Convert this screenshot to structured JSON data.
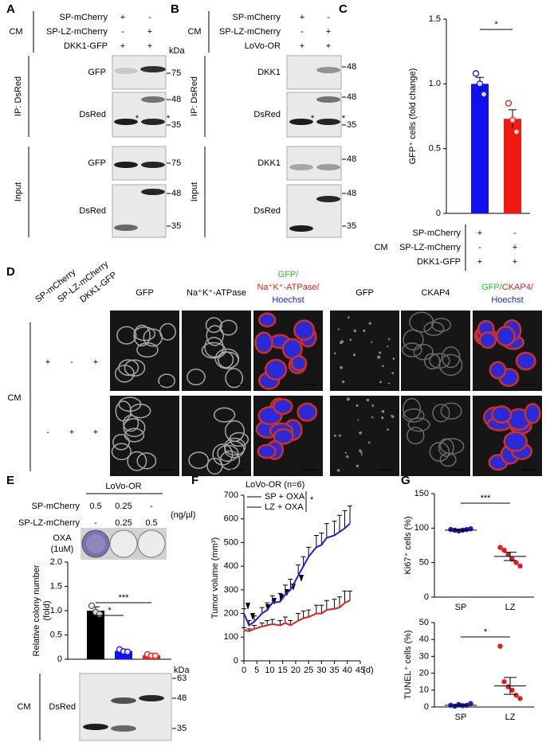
{
  "panels": {
    "A": {
      "label": "A",
      "conditions": {
        "group": "CM",
        "rows": [
          {
            "name": "SP-mCherry",
            "marks": [
              "+",
              "-"
            ]
          },
          {
            "name": "SP-LZ-mCherry",
            "marks": [
              "-",
              "+"
            ]
          },
          {
            "name": "DKK1-GFP",
            "marks": [
              "+",
              "+"
            ]
          }
        ]
      },
      "kda": "kDa",
      "sections": [
        {
          "label": "IP: DsRed",
          "blots": [
            {
              "name": "GFP",
              "markers": [
                75
              ]
            },
            {
              "name": "DsRed",
              "markers": [
                48,
                35
              ],
              "annotations": [
                "*",
                "*"
              ]
            }
          ]
        },
        {
          "label": "Input",
          "blots": [
            {
              "name": "GFP",
              "markers": [
                75
              ]
            },
            {
              "name": "DsRed",
              "markers": [
                48,
                35
              ]
            }
          ]
        }
      ]
    },
    "B": {
      "label": "B",
      "conditions": {
        "group": "CM",
        "rows": [
          {
            "name": "SP-mCherry",
            "marks": [
              "+",
              "-"
            ]
          },
          {
            "name": "SP-LZ-mCherry",
            "marks": [
              "-",
              "+"
            ]
          },
          {
            "name": "LoVo-OR",
            "marks": [
              "+",
              "+"
            ]
          }
        ]
      },
      "sections": [
        {
          "label": "IP: DsRed",
          "blots": [
            {
              "name": "DKK1",
              "markers": [
                48
              ]
            },
            {
              "name": "DsRed",
              "markers": [
                48,
                35
              ],
              "annotations": [
                "*",
                "*"
              ]
            }
          ]
        },
        {
          "label": "Input",
          "blots": [
            {
              "name": "DKK1",
              "markers": [
                48
              ]
            },
            {
              "name": "DsRed",
              "markers": [
                48,
                35
              ]
            }
          ]
        }
      ]
    },
    "C": {
      "label": "C",
      "conditions": {
        "group": "CM",
        "rows": [
          {
            "name": "SP-mCherry",
            "marks": [
              "+",
              "-"
            ]
          },
          {
            "name": "SP-LZ-mCherry",
            "marks": [
              "-",
              "+"
            ]
          },
          {
            "name": "DKK1-GFP",
            "marks": [
              "+",
              "+"
            ]
          }
        ]
      }
    },
    "D": {
      "label": "D",
      "group": "CM",
      "columns": [
        "SP-mCherry",
        "SP-LZ-mCherry",
        "DKK1-GFP"
      ],
      "rows": [
        [
          "+",
          "-",
          "+"
        ],
        [
          "-",
          "+",
          "+"
        ]
      ],
      "groups": [
        {
          "headers": [
            "GFP",
            "Na⁺K⁺-ATPase"
          ],
          "merge": [
            [
              {
                "text": "GFP/",
                "color": "#22c322"
              }
            ],
            [
              {
                "text": "Na⁺K⁺-ATPase/",
                "color": "#e3201b"
              }
            ],
            [
              {
                "text": "Hoechst",
                "color": "#1f1fe0"
              }
            ]
          ]
        },
        {
          "headers": [
            "GFP",
            "CKAP4"
          ],
          "merge": [
            [
              {
                "text": "GFP/",
                "color": "#22c322"
              },
              {
                "text": "CKAP4/",
                "color": "#e3201b"
              }
            ],
            [
              {
                "text": "Hoechst",
                "color": "#1f1fe0"
              }
            ]
          ]
        }
      ]
    },
    "E": {
      "label": "E",
      "cell_line": "LoVo-OR",
      "rows": [
        {
          "name": "SP-mCherry",
          "doses": [
            "0.5",
            "0.25",
            "-"
          ]
        },
        {
          "name": "SP-LZ-mCherry",
          "doses": [
            "-",
            "0.25",
            "0.5"
          ]
        }
      ],
      "unit": "(ng/µl)",
      "treatment": [
        "OXA",
        "(1uM)"
      ],
      "blot": {
        "group": "CM",
        "name": "DsRed",
        "kda": "kDa",
        "markers": [
          63,
          48,
          35
        ]
      }
    },
    "F": {
      "label": "F"
    },
    "G": {
      "label": "G"
    }
  },
  "chart_data": [
    {
      "type": "bar",
      "ylabel": "GFP⁺ cells (fold change)",
      "values": [
        1.0,
        0.73
      ],
      "errors": [
        0.05,
        0.07
      ],
      "points": [
        [
          1.08,
          1.0,
          0.92
        ],
        [
          0.85,
          0.72,
          0.63
        ]
      ],
      "colors": [
        "#1010f0",
        "#f01a10"
      ],
      "ylim": [
        0,
        1.5
      ],
      "yticks": [
        0,
        0.5,
        {
          "value": 1,
          "label": "1.0"
        },
        1.5
      ],
      "significance": [
        "*"
      ]
    },
    {
      "type": "bar",
      "ylabel": [
        "Relative colony number",
        "(fold)"
      ],
      "values": [
        1.0,
        0.17,
        0.08
      ],
      "errors": [
        0.08,
        0.03,
        0.02
      ],
      "points": [
        [
          1.1,
          0.97,
          0.93
        ],
        [
          0.2,
          0.16,
          0.15
        ],
        [
          0.1,
          0.07,
          0.07
        ]
      ],
      "colors": [
        "#000000",
        "#1010f0",
        "#f01a10"
      ],
      "ylim": [
        0,
        2
      ],
      "yticks": [
        0,
        0.5,
        {
          "value": 1,
          "label": "1.0"
        },
        1.5,
        {
          "value": 2,
          "label": "2.0"
        }
      ],
      "significance": [
        "*",
        "***"
      ]
    },
    {
      "type": "line",
      "subtitle": "LoVo-OR (n=6)",
      "x": [
        0,
        2,
        4,
        7,
        9,
        11,
        14,
        16,
        18,
        21,
        23,
        25,
        28,
        30,
        32,
        35,
        37,
        39,
        41
      ],
      "series": [
        {
          "name": "SP + OXA",
          "color": "#2020e0",
          "values": [
            200,
            150,
            165,
            200,
            215,
            245,
            250,
            280,
            300,
            360,
            400,
            440,
            480,
            490,
            520,
            530,
            545,
            560,
            580
          ],
          "errors": [
            20,
            20,
            25,
            25,
            30,
            30,
            35,
            40,
            45,
            45,
            40,
            40,
            50,
            50,
            60,
            60,
            70,
            75,
            75
          ]
        },
        {
          "name": "LZ + OXA",
          "color": "#e02020",
          "values": [
            130,
            125,
            135,
            145,
            150,
            155,
            150,
            160,
            150,
            170,
            180,
            185,
            200,
            200,
            215,
            220,
            225,
            245,
            255
          ],
          "errors": [
            10,
            10,
            15,
            15,
            20,
            20,
            20,
            25,
            20,
            30,
            30,
            30,
            35,
            35,
            40,
            40,
            45,
            50,
            40
          ]
        }
      ],
      "xlim": [
        0,
        45
      ],
      "xticks": [
        0,
        5,
        10,
        15,
        20,
        25,
        30,
        35,
        40,
        45
      ],
      "xlabel": "(d)",
      "ylim": [
        0,
        700
      ],
      "yticks": [
        0,
        100,
        200,
        300,
        400,
        500,
        600,
        700
      ],
      "ylabel": "Tumor volume (mm³)",
      "significance": "*"
    },
    {
      "type": "dot",
      "ylabel": "Ki67⁺ cells (%)",
      "categories": [
        "SP",
        "LZ"
      ],
      "values": [
        97,
        59
      ],
      "errors": [
        1,
        6
      ],
      "points": [
        [
          98,
          97,
          96,
          97,
          98,
          99
        ],
        [
          72,
          68,
          62,
          55,
          50,
          45
        ]
      ],
      "colors": [
        "#1a1ad0",
        "#e02020"
      ],
      "ylim": [
        0,
        150
      ],
      "yticks": [
        0,
        50,
        100,
        150
      ],
      "significance": "***"
    },
    {
      "type": "dot",
      "ylabel": "TUNEL⁺ cells (%)",
      "categories": [
        "SP",
        "LZ"
      ],
      "values": [
        1,
        12.5
      ],
      "errors": [
        0.3,
        5
      ],
      "points": [
        [
          1,
          0.5,
          1.5,
          0.8,
          1,
          2
        ],
        [
          36,
          15,
          12,
          10,
          7,
          5
        ]
      ],
      "colors": [
        "#1a1ad0",
        "#e02020"
      ],
      "ylim": [
        0,
        50
      ],
      "yticks": [
        0,
        10,
        20,
        30,
        40,
        50
      ],
      "significance": "*"
    }
  ]
}
